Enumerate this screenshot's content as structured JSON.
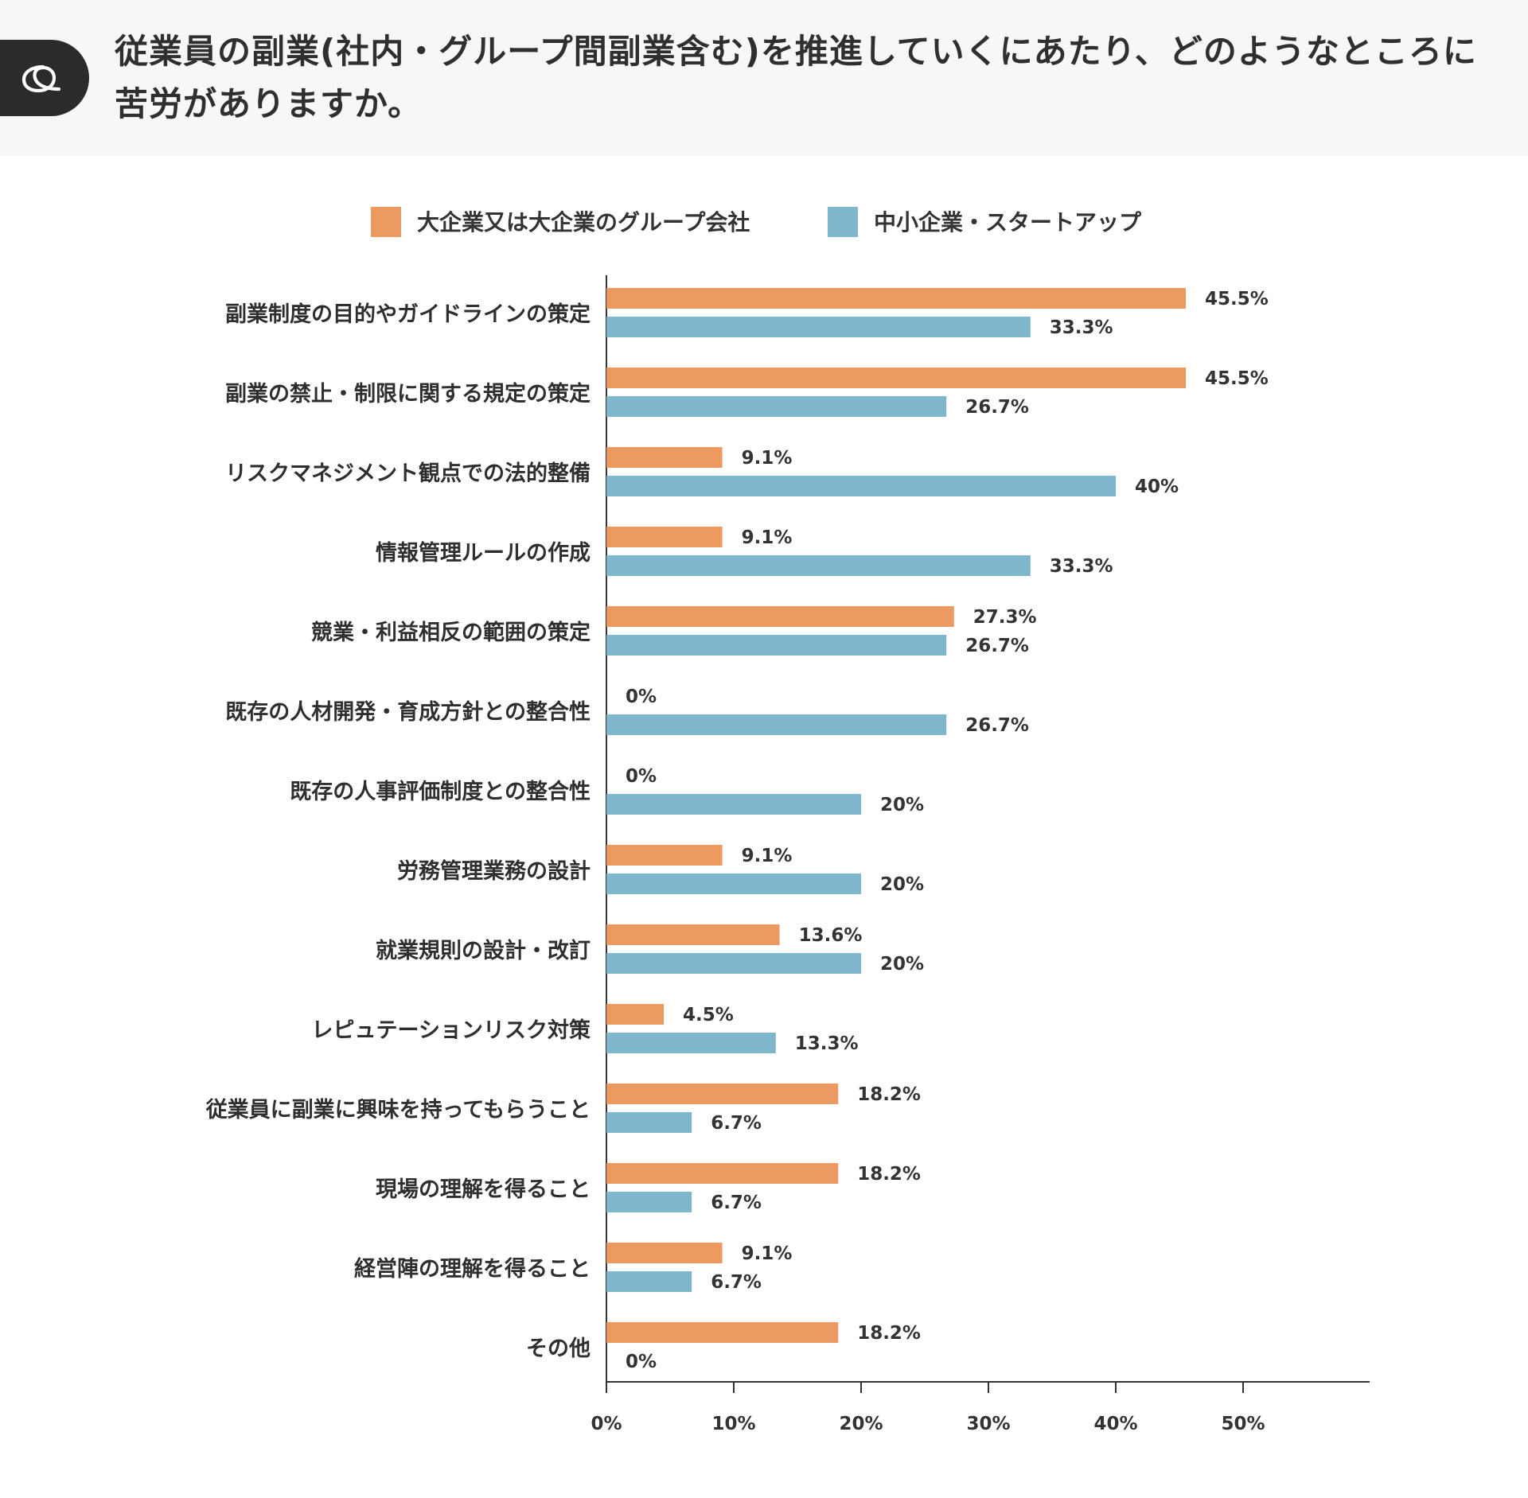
{
  "header": {
    "question": "従業員の副業(社内・グループ間副業含む)を推進していくにあたり、どのようなところに苦労がありますか。",
    "badge_icon": "q-letter-icon"
  },
  "colors": {
    "large": "#ec9a62",
    "small": "#7fb7cd",
    "axis": "#333333",
    "header_bg": "#f7f7f7",
    "badge": "#2b2b2b"
  },
  "chart_data": {
    "type": "bar",
    "orientation": "horizontal",
    "title": "",
    "xlabel": "",
    "ylabel": "",
    "xlim": [
      0,
      60
    ],
    "ticks": [
      0,
      10,
      20,
      30,
      40,
      50
    ],
    "tick_labels": [
      "0%",
      "10%",
      "20%",
      "30%",
      "40%",
      "50%"
    ],
    "legend_position": "top",
    "categories": [
      "副業制度の目的やガイドラインの策定",
      "副業の禁止・制限に関する規定の策定",
      "リスクマネジメント観点での法的整備",
      "情報管理ルールの作成",
      "競業・利益相反の範囲の策定",
      "既存の人材開発・育成方針との整合性",
      "既存の人事評価制度との整合性",
      "労務管理業務の設計",
      "就業規則の設計・改訂",
      "レピュテーションリスク対策",
      "従業員に副業に興味を持ってもらうこと",
      "現場の理解を得ること",
      "経営陣の理解を得ること",
      "その他"
    ],
    "series": [
      {
        "name": "大企業又は大企業のグループ会社",
        "color": "#ec9a62",
        "values": [
          45.5,
          45.5,
          9.1,
          9.1,
          27.3,
          0,
          0,
          9.1,
          13.6,
          4.5,
          18.2,
          18.2,
          9.1,
          18.2
        ],
        "labels": [
          "45.5%",
          "45.5%",
          "9.1%",
          "9.1%",
          "27.3%",
          "0%",
          "0%",
          "9.1%",
          "13.6%",
          "4.5%",
          "18.2%",
          "18.2%",
          "9.1%",
          "18.2%"
        ]
      },
      {
        "name": "中小企業・スタートアップ",
        "color": "#7fb7cd",
        "values": [
          33.3,
          26.7,
          40,
          33.3,
          26.7,
          26.7,
          20,
          20,
          20,
          13.3,
          6.7,
          6.7,
          6.7,
          0
        ],
        "labels": [
          "33.3%",
          "26.7%",
          "40%",
          "33.3%",
          "26.7%",
          "26.7%",
          "20%",
          "20%",
          "20%",
          "13.3%",
          "6.7%",
          "6.7%",
          "6.7%",
          "0%"
        ]
      }
    ]
  }
}
